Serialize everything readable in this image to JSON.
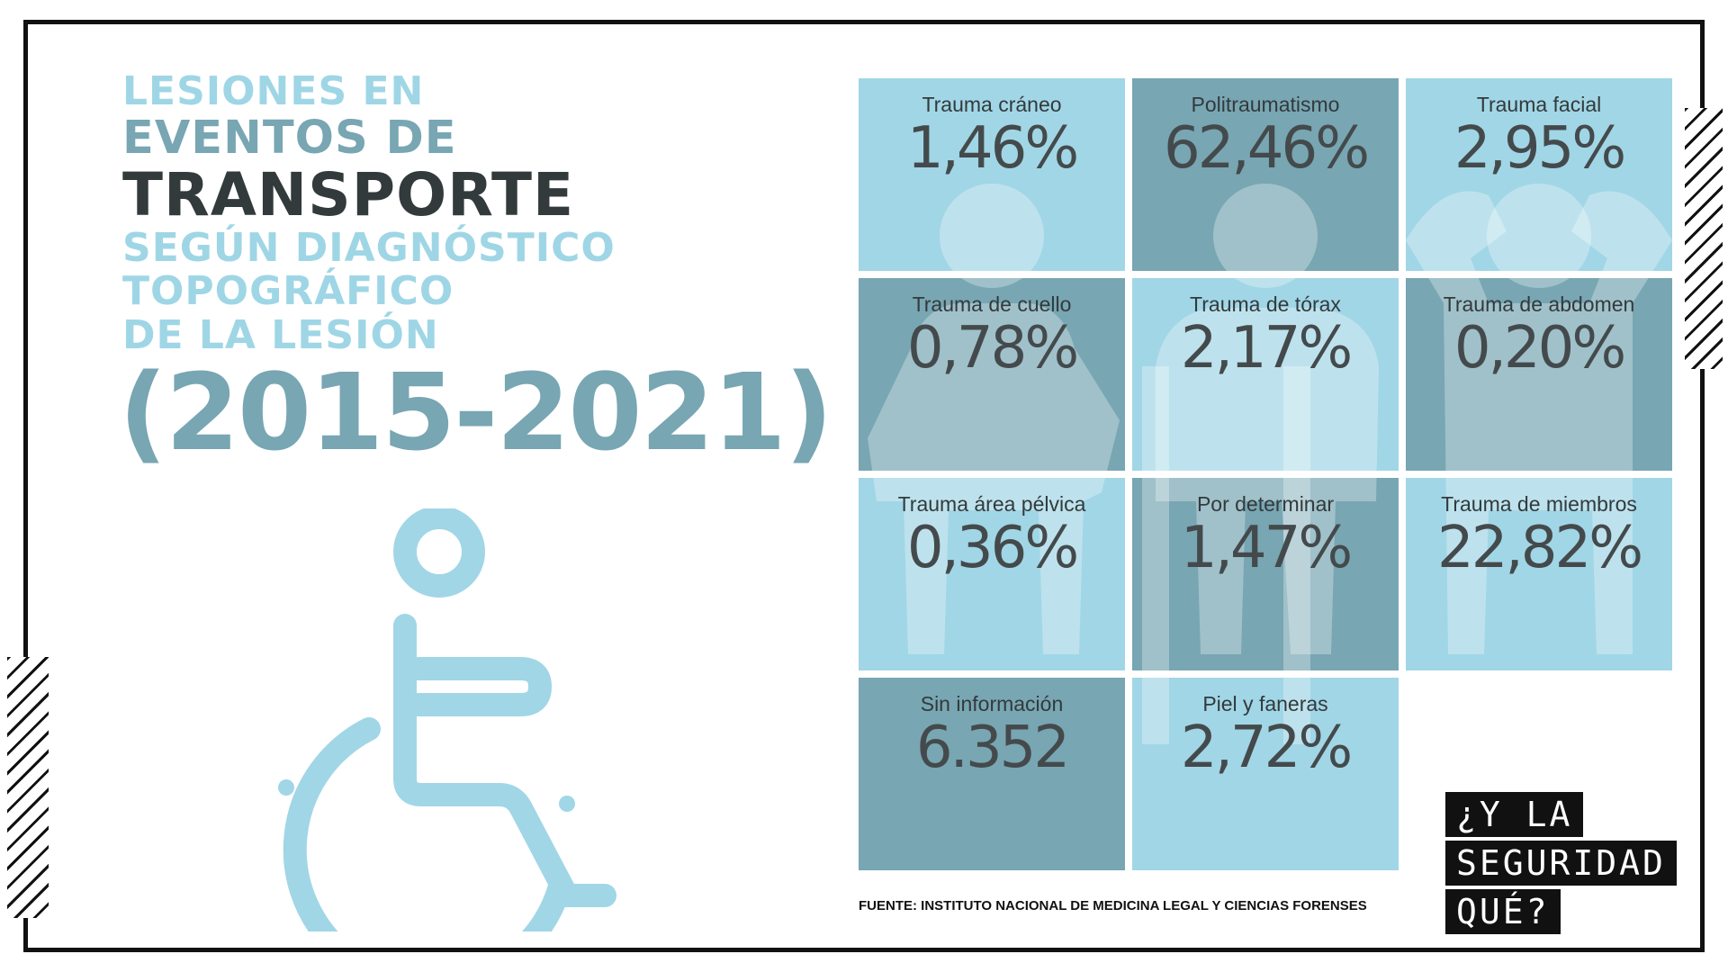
{
  "title": {
    "line1": "Lesiones en",
    "line2": "Eventos de",
    "line3": "Transporte",
    "line4": "Según diagnóstico",
    "line5": "topográfico",
    "line6": "de la lesión",
    "years": "(2015-2021)"
  },
  "tiles": [
    {
      "label": "Trauma cráneo",
      "value": "1,46%"
    },
    {
      "label": "Politraumatismo",
      "value": "62,46%"
    },
    {
      "label": "Trauma facial",
      "value": "2,95%"
    },
    {
      "label": "Trauma de cuello",
      "value": "0,78%"
    },
    {
      "label": "Trauma de tórax",
      "value": "2,17%"
    },
    {
      "label": "Trauma de abdomen",
      "value": "0,20%"
    },
    {
      "label": "Trauma área pélvica",
      "value": "0,36%"
    },
    {
      "label": "Por determinar",
      "value": "1,47%"
    },
    {
      "label": "Trauma de miembros",
      "value": "22,82%"
    },
    {
      "label": "Sin información",
      "value": "6.352"
    },
    {
      "label": "Piel y faneras",
      "value": "2,72%"
    }
  ],
  "source": "FUENTE: INSTITUTO NACIONAL DE MEDICINA LEGAL Y CIENCIAS FORENSES",
  "brand": {
    "line1": "¿Y LA",
    "line2": "SEGURIDAD",
    "line3": "QUÉ?"
  },
  "icons": [
    "wheelchair-icon",
    "injured-person-icon",
    "crutches-person-icon",
    "bandaged-head-person-icon"
  ],
  "colors": {
    "light_blue": "#a1d6e6",
    "teal": "#78a6b3",
    "dark_text": "#333a3c",
    "frame": "#111111"
  }
}
